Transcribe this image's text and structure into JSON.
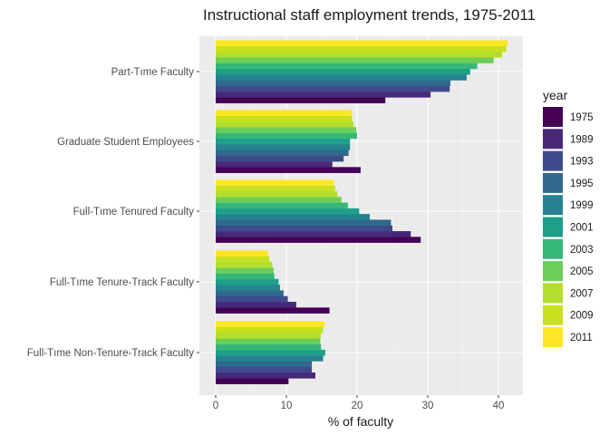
{
  "chart_data": {
    "type": "bar",
    "orientation": "horizontal",
    "title": "Instructional staff employment trends, 1975-2011",
    "xlabel": "% of faculty",
    "ylabel": "",
    "xlim": [
      0,
      43
    ],
    "xticks": [
      0,
      10,
      20,
      30,
      40
    ],
    "grid": true,
    "legend": {
      "title": "year",
      "position": "right"
    },
    "categories": [
      "Part-Time Faculty",
      "Graduate Student Employees",
      "Full-Time Tenured Faculty",
      "Full-Time Tenure-Track Faculty",
      "Full-Time Non-Tenure-Track Faculty"
    ],
    "category_labels": [
      "Part-Tıme Faculty",
      "Graduate Student Employees",
      "Full-Tıme Tenured Faculty",
      "Full-Tıme Tenure-Track Faculty",
      "Full-Tıme Non-Tenure-Track Faculty"
    ],
    "series": [
      {
        "name": "1975",
        "color": "#440154",
        "values": [
          24.0,
          20.5,
          29.0,
          16.1,
          10.3
        ]
      },
      {
        "name": "1989",
        "color": "#482878",
        "values": [
          30.4,
          16.5,
          27.6,
          11.4,
          14.1
        ]
      },
      {
        "name": "1993",
        "color": "#3E4A89",
        "values": [
          33.1,
          18.1,
          25.0,
          10.2,
          13.6
        ]
      },
      {
        "name": "1995",
        "color": "#31688E",
        "values": [
          33.2,
          18.8,
          24.8,
          9.6,
          13.6
        ]
      },
      {
        "name": "1999",
        "color": "#26828E",
        "values": [
          35.5,
          19.0,
          21.8,
          9.1,
          15.2
        ]
      },
      {
        "name": "2001",
        "color": "#1F9E89",
        "values": [
          36.0,
          19.0,
          20.3,
          8.9,
          15.5
        ]
      },
      {
        "name": "2003",
        "color": "#35B779",
        "values": [
          37.0,
          20.0,
          18.7,
          8.3,
          14.9
        ]
      },
      {
        "name": "2005",
        "color": "#6DCD59",
        "values": [
          39.3,
          19.9,
          17.8,
          8.2,
          14.8
        ]
      },
      {
        "name": "2007",
        "color": "#B4DE2C",
        "values": [
          40.5,
          19.5,
          17.2,
          8.0,
          14.9
        ]
      },
      {
        "name": "2009",
        "color": "#C8E020",
        "values": [
          41.1,
          19.3,
          16.9,
          7.6,
          15.2
        ]
      },
      {
        "name": "2011",
        "color": "#FDE725",
        "values": [
          41.3,
          19.3,
          16.7,
          7.4,
          15.4
        ]
      }
    ]
  }
}
